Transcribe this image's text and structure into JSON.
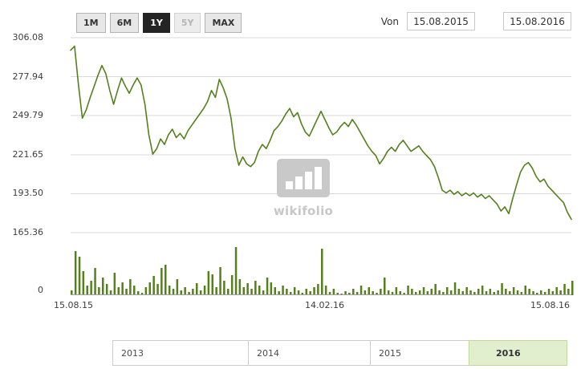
{
  "toolbar": {
    "ranges": [
      {
        "label": "1M",
        "state": "default"
      },
      {
        "label": "6M",
        "state": "default"
      },
      {
        "label": "1Y",
        "state": "selected"
      },
      {
        "label": "5Y",
        "state": "disabled"
      },
      {
        "label": "MAX",
        "state": "default"
      }
    ],
    "from_label": "Von",
    "date_from": "15.08.2015",
    "date_to": "15.08.2016"
  },
  "watermark": {
    "text": "wikifolio",
    "icon": "bar-chart-logo"
  },
  "navigator": {
    "years": [
      {
        "label": "2013",
        "selected": false
      },
      {
        "label": "2014",
        "selected": false
      },
      {
        "label": "2015",
        "selected": false
      },
      {
        "label": "2016",
        "selected": true
      }
    ]
  },
  "chart_data": {
    "type": "line",
    "title": "",
    "price": {
      "axis_max": 306.08,
      "axis_min": 165.36,
      "y_ticks": [
        306.08,
        277.94,
        249.79,
        221.65,
        193.5,
        165.36
      ],
      "y_tick_labels": [
        "306.08",
        "277.94",
        "249.79",
        "221.65",
        "193.50",
        "165.36"
      ],
      "x_tick_labels": [
        "15.08.15",
        "14.02.16",
        "15.08.16"
      ],
      "x_range": [
        "15.08.2015",
        "15.08.2016"
      ],
      "values": [
        297,
        300,
        272,
        248,
        254,
        263,
        271,
        279,
        286,
        280,
        268,
        258,
        268,
        277,
        271,
        266,
        272,
        277,
        272,
        258,
        236,
        222,
        226,
        233,
        229,
        236,
        240,
        234,
        237,
        233,
        239,
        243,
        247,
        251,
        255,
        260,
        268,
        263,
        276,
        270,
        262,
        248,
        226,
        214,
        220,
        215,
        213,
        216,
        224,
        229,
        226,
        232,
        239,
        242,
        246,
        251,
        255,
        249,
        252,
        244,
        238,
        235,
        241,
        247,
        253,
        247,
        241,
        236,
        238,
        242,
        245,
        242,
        247,
        243,
        238,
        233,
        228,
        224,
        221,
        215,
        219,
        224,
        227,
        224,
        229,
        232,
        228,
        224,
        226,
        228,
        224,
        221,
        218,
        213,
        205,
        196,
        194,
        196,
        193,
        195,
        192,
        194,
        192,
        194,
        191,
        193,
        190,
        192,
        189,
        186,
        181,
        184,
        179,
        190,
        200,
        209,
        214,
        216,
        212,
        206,
        202,
        204,
        199,
        196,
        193,
        190,
        187,
        180,
        175
      ]
    },
    "volume": {
      "type": "bar",
      "axis_max": 66,
      "y_tick_labels": [
        "0"
      ],
      "values": [
        6,
        55,
        48,
        30,
        12,
        18,
        34,
        10,
        22,
        14,
        6,
        28,
        10,
        16,
        8,
        20,
        12,
        5,
        3,
        10,
        16,
        24,
        14,
        34,
        38,
        12,
        8,
        20,
        6,
        10,
        4,
        8,
        15,
        6,
        12,
        30,
        26,
        10,
        35,
        18,
        8,
        25,
        60,
        20,
        10,
        15,
        8,
        18,
        12,
        6,
        22,
        16,
        10,
        5,
        12,
        8,
        4,
        10,
        6,
        3,
        8,
        5,
        10,
        14,
        58,
        12,
        4,
        8,
        3,
        2,
        5,
        3,
        8,
        4,
        12,
        6,
        10,
        5,
        3,
        8,
        22,
        6,
        4,
        10,
        5,
        3,
        12,
        8,
        4,
        6,
        10,
        5,
        8,
        14,
        6,
        4,
        10,
        6,
        16,
        8,
        5,
        10,
        6,
        4,
        8,
        12,
        5,
        8,
        4,
        6,
        15,
        8,
        5,
        10,
        6,
        4,
        12,
        8,
        5,
        3,
        6,
        4,
        8,
        5,
        10,
        6,
        14,
        8,
        18
      ]
    },
    "style": {
      "line_color": "#55801c",
      "bar_color": "#55801c",
      "grid_color": "#d9d9d9",
      "axis_line_color": "#a0a0a0",
      "selected_range_fill": "#e1efcf"
    },
    "legend": "none",
    "grid": "horizontal"
  }
}
